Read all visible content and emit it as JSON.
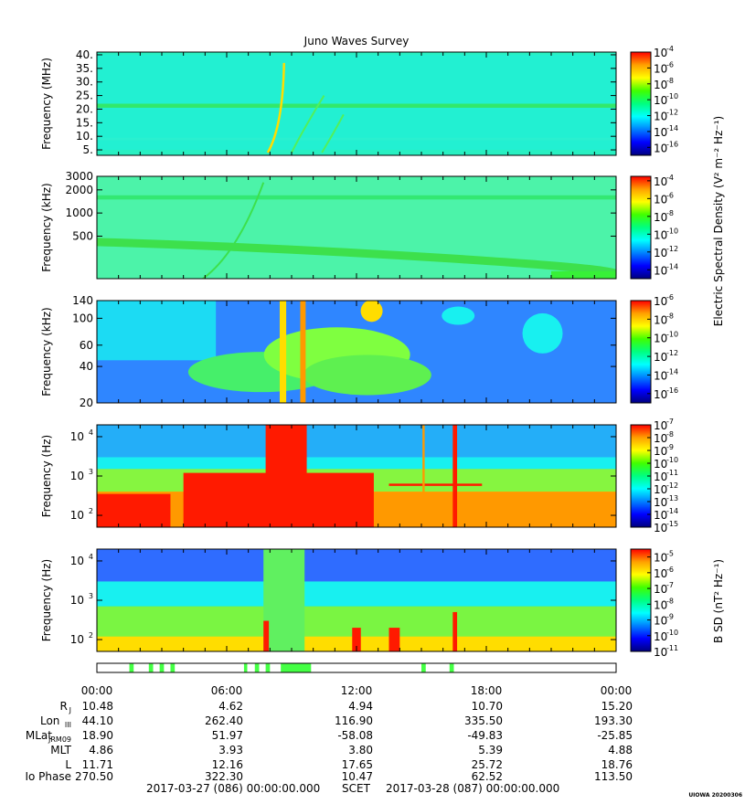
{
  "chart_data": {
    "type": "heatmap",
    "title": "Juno Waves Survey",
    "time_axis": {
      "ticks": [
        "00:00",
        "06:00",
        "12:00",
        "18:00",
        "00:00"
      ],
      "start": "2017-03-27 (086) 00:00:00.000",
      "frame": "SCET",
      "end": "2017-03-28 (087) 00:00:00.000"
    },
    "panels": [
      {
        "id": "mhz",
        "ylabel": "Frequency (MHz)",
        "yscale": "linear",
        "ylim": [
          3,
          41
        ],
        "yticks": [
          {
            "v": 5,
            "l": "5."
          },
          {
            "v": 10,
            "l": "10."
          },
          {
            "v": 15,
            "l": "15."
          },
          {
            "v": 20,
            "l": "20."
          },
          {
            "v": 25,
            "l": "25."
          },
          {
            "v": 30,
            "l": "30."
          },
          {
            "v": 35,
            "l": "35."
          },
          {
            "v": 40,
            "l": "40."
          }
        ],
        "colorbar": {
          "min_exp": -17,
          "max_exp": -4,
          "labels": [
            "-4",
            "-6",
            "-8",
            "-10",
            "-12",
            "-14",
            "-16"
          ]
        },
        "background": "#29f0c2"
      },
      {
        "id": "khz_high",
        "ylabel": "Frequency (kHz)",
        "yscale": "log",
        "ylim": [
          140,
          3000
        ],
        "yticks": [
          {
            "v": 500,
            "l": "500"
          },
          {
            "v": 1000,
            "l": "1000"
          },
          {
            "v": 2000,
            "l": "2000"
          },
          {
            "v": 3000,
            "l": "3000"
          }
        ],
        "colorbar": {
          "min_exp": -15,
          "max_exp": -3.5,
          "labels": [
            "-4",
            "-6",
            "-8",
            "-10",
            "-12",
            "-14"
          ]
        },
        "background": "#4cf3a9"
      },
      {
        "id": "khz_low",
        "ylabel": "Frequency (kHz)",
        "yscale": "log",
        "ylim": [
          20,
          140
        ],
        "yticks": [
          {
            "v": 20,
            "l": "20"
          },
          {
            "v": 40,
            "l": "40"
          },
          {
            "v": 60,
            "l": "60"
          },
          {
            "v": 100,
            "l": "100"
          },
          {
            "v": 140,
            "l": "140"
          }
        ],
        "colorbar": {
          "min_exp": -17,
          "max_exp": -6,
          "labels": [
            "-6",
            "-8",
            "-10",
            "-12",
            "-14",
            "-16"
          ]
        },
        "background": "#2f86ff"
      },
      {
        "id": "hz_e",
        "ylabel": "Frequency (Hz)",
        "yscale": "log",
        "ylim": [
          50,
          20000
        ],
        "yticks": [
          {
            "v": 100,
            "l": "10",
            "e": "2"
          },
          {
            "v": 1000,
            "l": "10",
            "e": "3"
          },
          {
            "v": 10000,
            "l": "10",
            "e": "4"
          }
        ],
        "colorbar": {
          "min_exp": -15,
          "max_exp": -7,
          "labels": [
            "-7",
            "-8",
            "-9",
            "-10",
            "-11",
            "-12",
            "-13",
            "-14",
            "-15"
          ]
        },
        "background": "#ffd400"
      },
      {
        "id": "hz_b",
        "ylabel": "Frequency (Hz)",
        "yscale": "log",
        "ylim": [
          50,
          20000
        ],
        "yticks": [
          {
            "v": 100,
            "l": "10",
            "e": "2"
          },
          {
            "v": 1000,
            "l": "10",
            "e": "3"
          },
          {
            "v": 10000,
            "l": "10",
            "e": "4"
          }
        ],
        "colorbar": {
          "min_exp": -11,
          "max_exp": -4.5,
          "labels": [
            "-5",
            "-6",
            "-7",
            "-8",
            "-9",
            "-10",
            "-11"
          ]
        },
        "background": "#2ee6a0"
      }
    ],
    "colorbar_titles": {
      "electric": "Electric Spectral Density (V² m⁻² Hz⁻¹)",
      "magnetic": "B SD (nT² Hz⁻¹)"
    },
    "mode_bar_segments": [
      [
        1.5,
        1.7
      ],
      [
        2.4,
        2.6
      ],
      [
        2.9,
        3.1
      ],
      [
        3.4,
        3.6
      ],
      [
        6.8,
        6.95
      ],
      [
        7.3,
        7.5
      ],
      [
        7.8,
        8.0
      ],
      [
        8.5,
        9.9
      ],
      [
        15.0,
        15.2
      ],
      [
        16.3,
        16.5
      ]
    ],
    "ephemeris": {
      "labels": [
        {
          "main": "R",
          "sub": "J"
        },
        {
          "main": "Lon",
          "sub": "III"
        },
        {
          "main": "MLat",
          "sub": "JRM09"
        },
        {
          "main": "MLT",
          "sub": ""
        },
        {
          "main": "L",
          "sub": ""
        },
        {
          "main": "Io Phase",
          "sub": ""
        }
      ],
      "values": [
        [
          "10.48",
          "4.62",
          "4.94",
          "10.70",
          "15.20"
        ],
        [
          "44.10",
          "262.40",
          "116.90",
          "335.50",
          "193.30"
        ],
        [
          "18.90",
          "51.97",
          "-58.08",
          "-49.83",
          "-25.85"
        ],
        [
          "4.86",
          "3.93",
          "3.80",
          "5.39",
          "4.88"
        ],
        [
          "11.71",
          "12.16",
          "17.65",
          "25.72",
          "18.76"
        ],
        [
          "270.50",
          "322.30",
          "10.47",
          "62.52",
          "113.50"
        ]
      ]
    },
    "colors": {
      "red": "#ff1a00",
      "orange": "#ff9900",
      "yellow": "#ffdd00",
      "green": "#38f038",
      "cyan": "#18f0f0",
      "blue": "#2f6cff",
      "navy": "#0000cc",
      "mode_bar": "#44ff44"
    }
  },
  "footer": {
    "stamp": "UIOWA 20200306"
  }
}
